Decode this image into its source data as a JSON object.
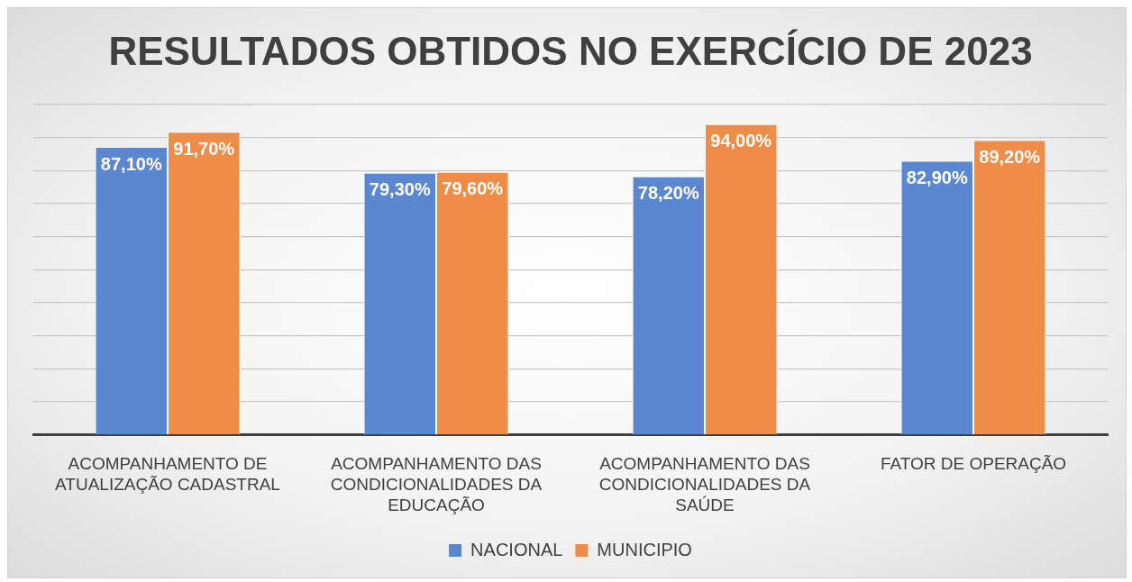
{
  "chart_data": {
    "type": "bar",
    "title": "RESULTADOS OBTIDOS NO EXERCÍCIO DE 2023",
    "categories": [
      "ACOMPANHAMENTO DE ATUALIZAÇÃO CADASTRAL",
      "ACOMPANHAMENTO DAS CONDICIONALIDADES DA EDUCAÇÃO",
      "ACOMPANHAMENTO DAS CONDICIONALIDADES DA SAÚDE",
      "FATOR DE OPERAÇÃO"
    ],
    "series": [
      {
        "name": "NACIONAL",
        "color": "#5b86d0",
        "values": [
          87.1,
          79.3,
          78.2,
          82.9
        ],
        "value_labels": [
          "87,10%",
          "79,30%",
          "78,20%",
          "82,90%"
        ]
      },
      {
        "name": "MUNICIPIO",
        "color": "#ee8c48",
        "values": [
          91.7,
          79.6,
          94.0,
          89.2
        ],
        "value_labels": [
          "91,70%",
          "79,60%",
          "94,00%",
          "89,20%"
        ]
      }
    ],
    "ylim": [
      0,
      100
    ],
    "yticks": [
      {
        "value": 0,
        "label": null
      },
      {
        "value": 10,
        "label": null
      },
      {
        "value": 20,
        "label": null
      },
      {
        "value": 30,
        "label": null
      },
      {
        "value": 40,
        "label": null
      },
      {
        "value": 50,
        "label": null
      },
      {
        "value": 60,
        "label": null
      },
      {
        "value": 70,
        "label": null
      },
      {
        "value": 80,
        "label": null
      },
      {
        "value": 90,
        "label": null
      },
      {
        "value": 100,
        "label": null
      }
    ],
    "tick_labels": "x",
    "grid": "y",
    "legend": "bottom"
  }
}
